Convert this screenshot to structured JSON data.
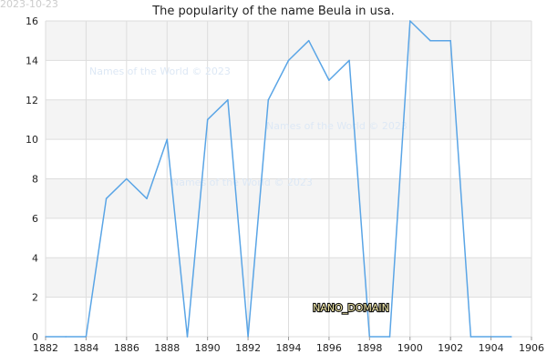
{
  "stamp": "2023-10-23",
  "watermarks": [
    "Names of the World © 2023",
    "Names of the World © 2023",
    "Names of the World © 2023"
  ],
  "nano_label": "NANO_DOMAIN",
  "chart_data": {
    "type": "line",
    "title": "The popularity of the name Beula in usa.",
    "xlabel": "",
    "ylabel": "",
    "xlim": [
      1882,
      1906
    ],
    "ylim": [
      0,
      16
    ],
    "xticks": [
      1882,
      1884,
      1886,
      1888,
      1890,
      1892,
      1894,
      1896,
      1898,
      1900,
      1902,
      1904,
      1906
    ],
    "yticks": [
      0,
      2,
      4,
      6,
      8,
      10,
      12,
      14,
      16
    ],
    "grid": true,
    "line_color": "#5aa5e6",
    "band_color": "#f4f4f4",
    "series": [
      {
        "x": [
          1882,
          1883,
          1884,
          1885,
          1886,
          1887,
          1888,
          1889,
          1890,
          1891,
          1892,
          1893,
          1894,
          1895,
          1896,
          1897,
          1898,
          1899,
          1900,
          1901,
          1902,
          1903,
          1904,
          1905
        ],
        "values": [
          0,
          0,
          0,
          7,
          8,
          7,
          10,
          0,
          11,
          12,
          0,
          12,
          14,
          15,
          13,
          14,
          0,
          0,
          16,
          15,
          15,
          0,
          0,
          0
        ]
      }
    ]
  }
}
